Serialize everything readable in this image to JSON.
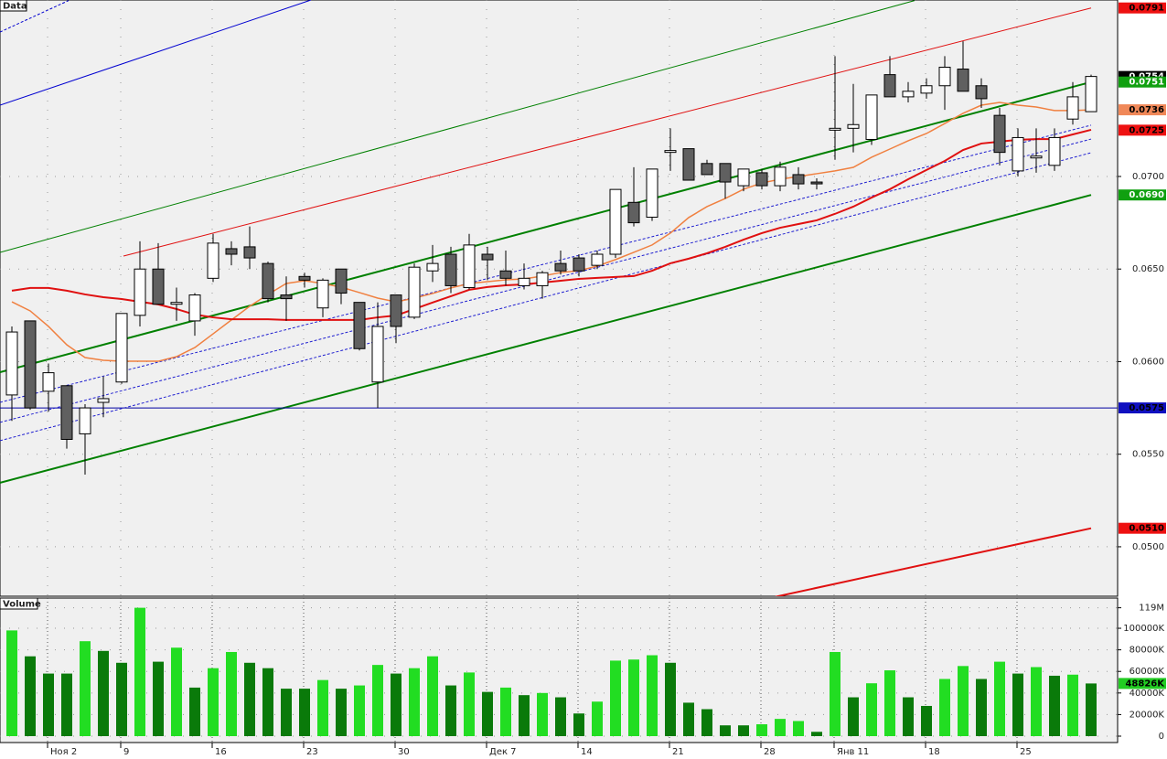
{
  "chart_data": [
    {
      "type": "candlestick",
      "title": "Data",
      "ylim": [
        0.04733,
        0.07953
      ],
      "yticks": [
        {
          "value": 0.05,
          "label": "0.0500"
        },
        {
          "value": 0.055,
          "label": "0.0550"
        },
        {
          "value": 0.06,
          "label": "0.0600"
        },
        {
          "value": 0.065,
          "label": "0.0650"
        },
        {
          "value": 0.07,
          "label": "0.0700"
        }
      ],
      "grid": true,
      "up_color": "#ffffff",
      "down_color": "#606060",
      "open": [
        0.0582,
        0.0622,
        0.0584,
        0.0587,
        0.0561,
        0.0578,
        0.0589,
        0.0625,
        0.065,
        0.0631,
        0.0622,
        0.0645,
        0.0661,
        0.0662,
        0.0653,
        0.0636,
        0.0646,
        0.0629,
        0.065,
        0.0632,
        0.0589,
        0.0636,
        0.0624,
        0.0649,
        0.0658,
        0.064,
        0.0658,
        0.0649,
        0.0641,
        0.0641,
        0.0653,
        0.0656,
        0.0652,
        0.0658,
        0.0686,
        0.0678,
        0.0713,
        0.0715,
        0.0707,
        0.0707,
        0.0695,
        0.0702,
        0.0695,
        0.0701,
        0.0697,
        0.0725,
        0.0726,
        0.072,
        0.0755,
        0.0743,
        0.0745,
        0.0749,
        0.0758,
        0.0749,
        0.0733,
        0.0703,
        0.071,
        0.0706,
        0.0731,
        0.0735
      ],
      "high": [
        0.0619,
        0.0622,
        0.0599,
        0.0587,
        0.0577,
        0.0592,
        0.0626,
        0.0665,
        0.0664,
        0.064,
        0.0637,
        0.0669,
        0.0665,
        0.0673,
        0.0654,
        0.0646,
        0.0648,
        0.0645,
        0.065,
        0.0632,
        0.0632,
        0.0636,
        0.0653,
        0.0663,
        0.0662,
        0.0669,
        0.0662,
        0.066,
        0.0653,
        0.0649,
        0.066,
        0.0658,
        0.066,
        0.0693,
        0.0705,
        0.0704,
        0.0726,
        0.0715,
        0.0709,
        0.0707,
        0.0704,
        0.0704,
        0.0708,
        0.0705,
        0.0699,
        0.0765,
        0.075,
        0.0744,
        0.0765,
        0.0751,
        0.0753,
        0.0765,
        0.0773,
        0.0753,
        0.0737,
        0.0726,
        0.0726,
        0.0726,
        0.0751,
        0.0755
      ],
      "low": [
        0.0568,
        0.0574,
        0.0573,
        0.0553,
        0.0539,
        0.057,
        0.0588,
        0.0619,
        0.0631,
        0.0622,
        0.0614,
        0.0643,
        0.0652,
        0.065,
        0.0632,
        0.0622,
        0.064,
        0.0624,
        0.0631,
        0.0606,
        0.0575,
        0.061,
        0.0623,
        0.0643,
        0.0637,
        0.0639,
        0.0644,
        0.0641,
        0.0639,
        0.0634,
        0.0647,
        0.0646,
        0.065,
        0.0656,
        0.0673,
        0.0676,
        0.0703,
        0.0698,
        0.0701,
        0.0688,
        0.0692,
        0.0693,
        0.0692,
        0.0693,
        0.0693,
        0.0709,
        0.0713,
        0.0717,
        0.0743,
        0.074,
        0.0742,
        0.0736,
        0.0746,
        0.0737,
        0.0706,
        0.07,
        0.0702,
        0.0703,
        0.0728,
        0.0735
      ],
      "close": [
        0.0616,
        0.0575,
        0.0594,
        0.0558,
        0.0575,
        0.058,
        0.0626,
        0.065,
        0.0631,
        0.0632,
        0.0636,
        0.0664,
        0.0658,
        0.0656,
        0.0634,
        0.0634,
        0.0644,
        0.0644,
        0.0637,
        0.0607,
        0.0619,
        0.0619,
        0.0651,
        0.0653,
        0.0641,
        0.0663,
        0.0655,
        0.0645,
        0.0645,
        0.0648,
        0.0649,
        0.0649,
        0.0658,
        0.0693,
        0.0675,
        0.0704,
        0.0714,
        0.0698,
        0.0701,
        0.0697,
        0.0704,
        0.0695,
        0.0705,
        0.0696,
        0.0696,
        0.0726,
        0.0728,
        0.0744,
        0.0743,
        0.0746,
        0.0749,
        0.0759,
        0.0746,
        0.0742,
        0.0713,
        0.0721,
        0.0711,
        0.0721,
        0.0743,
        0.0754
      ],
      "series": [
        {
          "color": "#f08040",
          "width": 1.5,
          "values": [
            0.06323,
            0.06274,
            0.0619,
            0.06091,
            0.06022,
            0.06007,
            0.06002,
            0.06002,
            0.06002,
            0.06027,
            0.06076,
            0.0615,
            0.06225,
            0.06299,
            0.06363,
            0.06422,
            0.06437,
            0.06422,
            0.06402,
            0.06373,
            0.06343,
            0.06323,
            0.06343,
            0.06368,
            0.06398,
            0.06422,
            0.06432,
            0.06442,
            0.06447,
            0.06462,
            0.06481,
            0.06491,
            0.06516,
            0.06551,
            0.0659,
            0.0663,
            0.06694,
            0.06778,
            0.06837,
            0.06881,
            0.06931,
            0.06965,
            0.06985,
            0.07,
            0.07015,
            0.0703,
            0.07049,
            0.07104,
            0.07148,
            0.07193,
            0.07232,
            0.07286,
            0.07341,
            0.07385,
            0.074,
            0.07385,
            0.07375,
            0.07356,
            0.07356,
            0.0736
          ]
        },
        {
          "color": "#e01010",
          "width": 2,
          "values": [
            0.06383,
            0.06398,
            0.06398,
            0.06383,
            0.06363,
            0.06348,
            0.06338,
            0.06323,
            0.06309,
            0.06284,
            0.06254,
            0.06239,
            0.06229,
            0.06229,
            0.06229,
            0.06225,
            0.06225,
            0.06225,
            0.06225,
            0.06225,
            0.06239,
            0.06249,
            0.06284,
            0.06319,
            0.06353,
            0.06388,
            0.06403,
            0.06412,
            0.06417,
            0.06427,
            0.06437,
            0.06447,
            0.06452,
            0.06457,
            0.06462,
            0.06491,
            0.06531,
            0.06556,
            0.06585,
            0.0662,
            0.06659,
            0.06694,
            0.06723,
            0.06743,
            0.06763,
            0.06798,
            0.06837,
            0.06886,
            0.06931,
            0.06985,
            0.07035,
            0.07084,
            0.07143,
            0.07178,
            0.07188,
            0.07198,
            0.07202,
            0.07202,
            0.07227,
            0.07252
          ]
        }
      ],
      "trend_lines": [
        {
          "color": "#0000d0",
          "width": 1,
          "dashed": false,
          "x": [
            -0.65,
            16.35
          ],
          "values": [
            0.07385,
            0.07953
          ]
        },
        {
          "color": "#0000d0",
          "width": 1,
          "dashed": true,
          "x": [
            -0.65,
            3.1
          ],
          "values": [
            0.0778,
            0.0795
          ]
        },
        {
          "color": "#008000",
          "width": 1,
          "dashed": false,
          "x": [
            -0.65,
            49.35
          ],
          "values": [
            0.0659,
            0.0795
          ]
        },
        {
          "color": "#e01010",
          "width": 1,
          "dashed": false,
          "x": [
            6.1,
            59
          ],
          "values": [
            0.0657,
            0.0791
          ]
        },
        {
          "color": "#008000",
          "width": 2,
          "dashed": false,
          "x": [
            -0.65,
            59
          ],
          "values": [
            0.05943,
            0.0751
          ]
        },
        {
          "color": "#008000",
          "width": 2,
          "dashed": false,
          "x": [
            -0.65,
            59
          ],
          "values": [
            0.05346,
            0.069
          ]
        },
        {
          "color": "#e01010",
          "width": 2,
          "dashed": false,
          "x": [
            41.75,
            59
          ],
          "values": [
            0.0473,
            0.051
          ]
        },
        {
          "color": "#0000a0",
          "width": 1,
          "dashed": false,
          "x": [
            -0.65,
            60.45
          ],
          "values": [
            0.0575,
            0.0575
          ]
        },
        {
          "color": "#2020d0",
          "width": 1,
          "dashed": true,
          "x": [
            -0.65,
            59
          ],
          "values": [
            0.0578,
            0.07277
          ]
        },
        {
          "color": "#2020d0",
          "width": 1,
          "dashed": true,
          "x": [
            -0.65,
            59
          ],
          "values": [
            0.05672,
            0.07202
          ]
        },
        {
          "color": "#2020d0",
          "width": 1,
          "dashed": true,
          "x": [
            -0.65,
            59
          ],
          "values": [
            0.05573,
            0.07128
          ]
        }
      ],
      "price_labels": [
        {
          "value": 0.0791,
          "label": "0.0791",
          "color": "#ee1111"
        },
        {
          "value": 0.0754,
          "label": "0.0754",
          "color": "#000000"
        },
        {
          "value": 0.0751,
          "label": "0.0751",
          "color": "#10a010"
        },
        {
          "value": 0.0736,
          "label": "0.0736",
          "color": "#f08858"
        },
        {
          "value": 0.0725,
          "label": "0.0725",
          "color": "#ee1111"
        },
        {
          "value": 0.069,
          "label": "0.0690",
          "color": "#10a010"
        },
        {
          "value": 0.0575,
          "label": "0.0575",
          "color": "#1010c0"
        },
        {
          "value": 0.051,
          "label": "0.0510",
          "color": "#ee1111"
        }
      ]
    },
    {
      "type": "bar",
      "title": "Volume",
      "categories": [
        null,
        null,
        "Ноя 2",
        null,
        null,
        null,
        "9",
        null,
        null,
        null,
        null,
        "16",
        null,
        null,
        null,
        null,
        "23",
        null,
        null,
        null,
        null,
        "30",
        null,
        null,
        null,
        null,
        "Дек 7",
        null,
        null,
        null,
        null,
        "14",
        null,
        null,
        null,
        null,
        "21",
        null,
        null,
        null,
        null,
        "28",
        null,
        null,
        null,
        "Янв 11",
        null,
        null,
        null,
        null,
        "18",
        null,
        null,
        null,
        null,
        "25",
        null,
        null,
        null,
        null
      ],
      "ylim": [
        0,
        128000000
      ],
      "yticks": [
        0,
        {
          "value": 20000000,
          "label": "20000K"
        },
        {
          "value": 40000000,
          "label": "40000K"
        },
        {
          "value": 60000000,
          "label": "60000K"
        },
        {
          "value": 80000000,
          "label": "80000K"
        },
        {
          "value": 100000000,
          "label": "100000K"
        },
        {
          "value": 119000000,
          "label": "119M"
        }
      ],
      "values": [
        98000000,
        74000000,
        58000000,
        58000000,
        88000000,
        79000000,
        68000000,
        119000000,
        69000000,
        82000000,
        45000000,
        63000000,
        78000000,
        68000000,
        63000000,
        44000000,
        44000000,
        52000000,
        44000000,
        47000000,
        66000000,
        58000000,
        63000000,
        74000000,
        47000000,
        59000000,
        41000000,
        45000000,
        38000000,
        40000000,
        36000000,
        21000000,
        32000000,
        70000000,
        71000000,
        75000000,
        68000000,
        31000000,
        25000000,
        10000000,
        10000000,
        11000000,
        16000000,
        14000000,
        4000000,
        78000000,
        36000000,
        49000000,
        61000000,
        36000000,
        28000000,
        53000000,
        65000000,
        53000000,
        69000000,
        58000000,
        64000000,
        56000000,
        57000000,
        48826000
      ],
      "value_labels": [
        null,
        null,
        null,
        null,
        null,
        null,
        null,
        null,
        null,
        null,
        null,
        null,
        null,
        null,
        null,
        null,
        null,
        null,
        null,
        null,
        null,
        null,
        null,
        null,
        null,
        null,
        null,
        null,
        null,
        null,
        null,
        null,
        null,
        null,
        null,
        null,
        null,
        null,
        null,
        null,
        null,
        null,
        null,
        null,
        null,
        null,
        null,
        null,
        null,
        null,
        null,
        null,
        null,
        null,
        null,
        null,
        null,
        null,
        null,
        "48826K"
      ],
      "colors": [
        "#22dd22",
        "#0a7a0a",
        "#0a7a0a",
        "#0a7a0a",
        "#22dd22",
        "#0a7a0a",
        "#0a7a0a",
        "#22dd22",
        "#0a7a0a",
        "#22dd22",
        "#0a7a0a",
        "#22dd22",
        "#22dd22",
        "#0a7a0a",
        "#0a7a0a",
        "#0a7a0a",
        "#0a7a0a",
        "#22dd22",
        "#0a7a0a",
        "#22dd22",
        "#22dd22",
        "#0a7a0a",
        "#22dd22",
        "#22dd22",
        "#0a7a0a",
        "#22dd22",
        "#0a7a0a",
        "#22dd22",
        "#0a7a0a",
        "#22dd22",
        "#0a7a0a",
        "#0a7a0a",
        "#22dd22",
        "#22dd22",
        "#22dd22",
        "#22dd22",
        "#0a7a0a",
        "#0a7a0a",
        "#0a7a0a",
        "#0a7a0a",
        "#0a7a0a",
        "#22dd22",
        "#22dd22",
        "#22dd22",
        "#0a7a0a",
        "#22dd22",
        "#0a7a0a",
        "#22dd22",
        "#22dd22",
        "#0a7a0a",
        "#0a7a0a",
        "#22dd22",
        "#22dd22",
        "#0a7a0a",
        "#22dd22",
        "#0a7a0a",
        "#22dd22",
        "#0a7a0a",
        "#22dd22",
        "#0a7a0a"
      ],
      "grid": true
    }
  ]
}
